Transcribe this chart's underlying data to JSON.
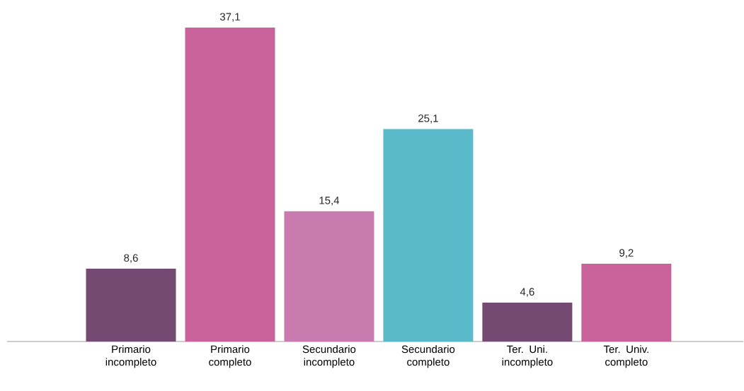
{
  "chart_data": {
    "type": "bar",
    "categories": [
      "Primario incompleto",
      "Primario completo",
      "Secundario incompleto",
      "Secundario completo",
      "Ter. Uni. incompleto",
      "Ter. Univ. completo"
    ],
    "values": [
      8.6,
      37.1,
      15.4,
      25.1,
      4.6,
      9.2
    ],
    "colors": [
      "#744a73",
      "#c9629a",
      "#c97bb0",
      "#5bbac9",
      "#744a73",
      "#c9629a"
    ],
    "value_labels": [
      "8,6",
      "37,1",
      "15,4",
      "25,1",
      "4,6",
      "9,2"
    ],
    "tick_labels": "x"
  }
}
